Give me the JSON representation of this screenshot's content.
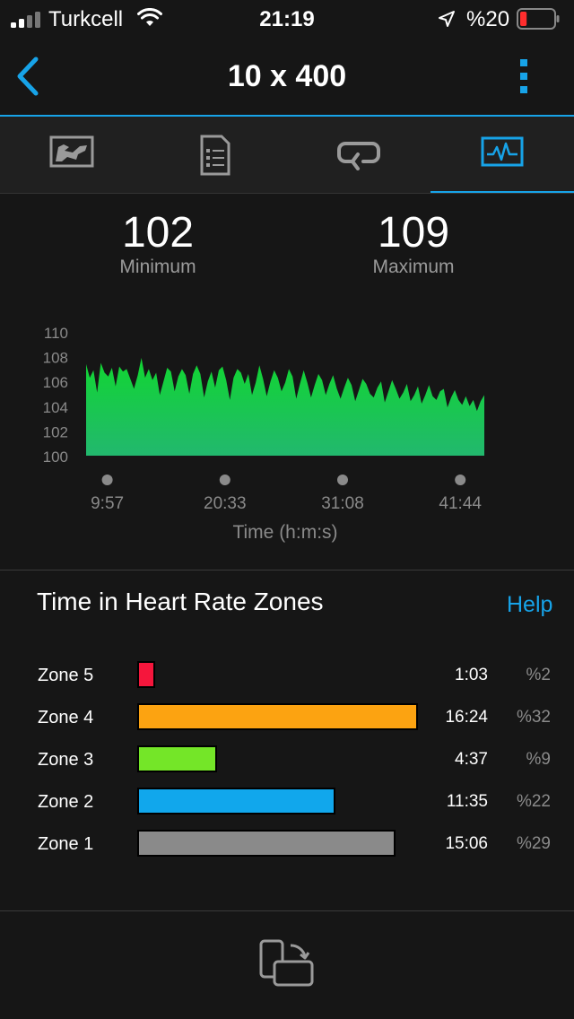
{
  "status_bar": {
    "carrier": "Turkcell",
    "time": "21:19",
    "battery_percent": "%20",
    "battery_level": 0.2,
    "battery_color": "#ff2d2d"
  },
  "nav": {
    "title": "10 x 400",
    "accent_color": "#17a3e8"
  },
  "tabs": [
    {
      "icon": "map-icon",
      "active": false
    },
    {
      "icon": "details-icon",
      "active": false
    },
    {
      "icon": "laps-icon",
      "active": false
    },
    {
      "icon": "heart-rate-chart-icon",
      "active": true
    }
  ],
  "stats": {
    "minimum_value": "102",
    "minimum_label": "Minimum",
    "maximum_value": "109",
    "maximum_label": "Maximum"
  },
  "chart_data": {
    "type": "area",
    "y_ticks": [
      "110",
      "108",
      "106",
      "104",
      "102",
      "100"
    ],
    "ylim": [
      100,
      110
    ],
    "x_ticks": [
      "9:57",
      "20:33",
      "31:08",
      "41:44"
    ],
    "x_tick_fractions": [
      0.19,
      0.395,
      0.6,
      0.805
    ],
    "xlabel": "Time (h:m:s)",
    "gradient_top": "#11d631",
    "gradient_bottom": "#22b86e",
    "values": [
      107.4,
      106.3,
      106.9,
      105.1,
      107.5,
      106.7,
      106.4,
      107.1,
      105.6,
      107.2,
      106.8,
      107.0,
      106.2,
      105.4,
      106.5,
      107.9,
      106.3,
      107.0,
      106.1,
      106.7,
      104.9,
      106.0,
      107.1,
      106.8,
      105.2,
      106.4,
      107.0,
      106.5,
      105.0,
      106.6,
      107.3,
      106.6,
      104.7,
      106.0,
      106.8,
      105.5,
      106.9,
      107.2,
      106.1,
      104.5,
      106.3,
      107.0,
      106.7,
      105.8,
      106.6,
      104.9,
      105.9,
      107.3,
      106.2,
      104.8,
      106.0,
      106.9,
      106.3,
      105.2,
      105.9,
      107.0,
      106.4,
      104.6,
      105.8,
      106.9,
      105.9,
      104.7,
      105.7,
      106.6,
      106.1,
      104.9,
      105.8,
      106.5,
      105.4,
      104.6,
      105.5,
      106.3,
      105.7,
      104.4,
      105.3,
      106.2,
      105.8,
      105.0,
      104.7,
      105.5,
      106.0,
      104.3,
      105.2,
      106.1,
      105.4,
      104.6,
      105.1,
      105.8,
      104.4,
      104.9,
      105.6,
      104.2,
      104.9,
      105.7,
      104.8,
      104.5,
      105.2,
      105.4,
      103.9,
      104.7,
      105.3,
      104.5,
      104.1,
      104.8,
      104.0,
      104.5,
      103.6,
      104.4,
      104.9
    ]
  },
  "zones": {
    "title": "Time in Heart Rate Zones",
    "help_label": "Help",
    "rows": [
      {
        "name": "Zone 5",
        "time": "1:03",
        "pct": "%2",
        "fraction": 0.065,
        "color": "#f5163c"
      },
      {
        "name": "Zone 4",
        "time": "16:24",
        "pct": "%32",
        "fraction": 1.0,
        "color": "#fca311"
      },
      {
        "name": "Zone 3",
        "time": "4:37",
        "pct": "%9",
        "fraction": 0.285,
        "color": "#74e628"
      },
      {
        "name": "Zone 2",
        "time": "11:35",
        "pct": "%22",
        "fraction": 0.705,
        "color": "#11a7ec"
      },
      {
        "name": "Zone 1",
        "time": "15:06",
        "pct": "%29",
        "fraction": 0.92,
        "color": "#8a8a8a"
      }
    ]
  },
  "bottom": {
    "icon": "rotate-device-icon"
  }
}
